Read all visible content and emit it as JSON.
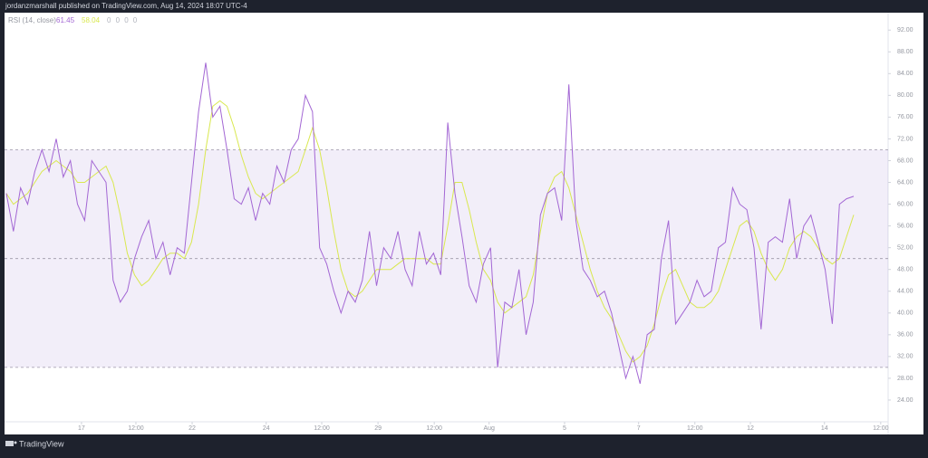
{
  "header": {
    "text": "jordanzmarshall published on TradingView.com, Aug 14, 2024 18:07 UTC-4"
  },
  "footer": {
    "brand": "TradingView"
  },
  "chart_data": {
    "type": "line",
    "legend": {
      "label": "RSI (14, close)",
      "values": [
        61.45,
        58.04,
        0,
        0,
        0,
        0
      ]
    },
    "x": [
      0,
      1,
      2,
      3,
      4,
      5,
      6,
      7,
      8,
      9,
      10,
      11,
      12,
      13,
      14,
      15,
      16,
      17,
      18,
      19,
      20,
      21,
      22,
      23,
      24,
      25,
      26,
      27,
      28,
      29,
      30,
      31,
      32,
      33,
      34,
      35,
      36,
      37,
      38,
      39,
      40,
      41,
      42,
      43,
      44,
      45,
      46,
      47,
      48,
      49,
      50,
      51,
      52,
      53,
      54,
      55,
      56,
      57,
      58,
      59,
      60,
      61,
      62,
      63,
      64,
      65,
      66,
      67,
      68,
      69,
      70,
      71,
      72,
      73,
      74,
      75,
      76,
      77,
      78,
      79,
      80,
      81,
      82,
      83,
      84,
      85,
      86,
      87,
      88,
      89,
      90,
      91,
      92,
      93,
      94,
      95,
      96,
      97,
      98,
      99,
      100,
      101,
      102,
      103,
      104,
      105,
      106,
      107,
      108,
      109,
      110,
      111,
      112,
      113,
      114,
      115,
      116,
      117,
      118,
      119
    ],
    "series": [
      {
        "color": "#a367d4",
        "values": [
          62,
          55,
          63,
          60,
          66,
          70,
          66,
          72,
          65,
          68,
          60,
          57,
          68,
          66,
          64,
          46,
          42,
          44,
          50,
          54,
          57,
          50,
          53,
          47,
          52,
          51,
          64,
          77,
          86,
          76,
          78,
          70,
          61,
          60,
          63,
          57,
          62,
          60,
          67,
          64,
          70,
          72,
          80,
          77,
          52,
          49,
          44,
          40,
          44,
          42,
          46,
          55,
          45,
          52,
          50,
          55,
          48,
          45,
          55,
          49,
          51,
          47,
          75,
          62,
          54,
          45,
          42,
          49,
          52,
          30,
          42,
          41,
          48,
          36,
          42,
          58,
          62,
          63,
          57,
          82,
          57,
          48,
          46,
          43,
          44,
          40,
          34,
          28,
          32,
          27,
          36,
          37,
          50,
          57,
          38,
          40,
          42,
          46,
          43,
          44,
          52,
          53,
          63,
          60,
          59,
          52,
          37,
          53,
          54,
          53,
          61,
          50,
          56,
          58,
          53,
          48,
          38,
          60,
          61,
          61.45
        ]
      },
      {
        "color": "#d9e84f",
        "values": [
          62,
          60,
          61,
          62,
          64,
          66,
          67,
          68,
          67,
          66,
          64,
          64,
          65,
          66,
          67,
          64,
          58,
          51,
          47,
          45,
          46,
          48,
          50,
          51,
          51,
          50,
          53,
          60,
          70,
          78,
          79,
          78,
          74,
          69,
          65,
          62,
          61,
          62,
          63,
          64,
          65,
          66,
          70,
          74,
          70,
          63,
          55,
          48,
          44,
          43,
          44,
          46,
          48,
          48,
          48,
          49,
          50,
          50,
          50,
          50,
          49,
          49,
          56,
          64,
          64,
          59,
          53,
          48,
          46,
          42,
          40,
          41,
          42,
          43,
          47,
          55,
          62,
          65,
          66,
          63,
          58,
          53,
          48,
          44,
          41,
          39,
          36,
          33,
          31,
          32,
          34,
          38,
          43,
          47,
          48,
          45,
          42,
          41,
          41,
          42,
          44,
          48,
          52,
          56,
          57,
          55,
          51,
          48,
          46,
          48,
          52,
          54,
          55,
          54,
          52,
          50,
          49,
          50,
          54,
          58.04
        ]
      }
    ],
    "levels": [
      70,
      50,
      30
    ],
    "xlim": [
      -0.25,
      123.84
    ],
    "xticks": [
      {
        "value": 10.56,
        "label": "17"
      },
      {
        "value": 18.2,
        "label": "12:00"
      },
      {
        "value": 26.1,
        "label": "22"
      },
      {
        "value": 36.5,
        "label": "24"
      },
      {
        "value": 44.3,
        "label": "12:00"
      },
      {
        "value": 52.2,
        "label": "29"
      },
      {
        "value": 60.1,
        "label": "12:00"
      },
      {
        "value": 67.8,
        "label": "Aug"
      },
      {
        "value": 78.4,
        "label": "5"
      },
      {
        "value": 88.8,
        "label": "7"
      },
      {
        "value": 96.7,
        "label": "12:00"
      },
      {
        "value": 104.5,
        "label": "12"
      },
      {
        "value": 114.9,
        "label": "14"
      },
      {
        "value": 122.8,
        "label": "12:00"
      }
    ],
    "ylim": [
      20,
      95.2
    ],
    "yticks": [
      {
        "value": 24,
        "label": "24.00"
      },
      {
        "value": 28,
        "label": "28.00"
      },
      {
        "value": 32,
        "label": "32.00"
      },
      {
        "value": 36,
        "label": "36.00"
      },
      {
        "value": 40,
        "label": "40.00"
      },
      {
        "value": 44,
        "label": "44.00"
      },
      {
        "value": 48,
        "label": "48.00"
      },
      {
        "value": 52,
        "label": "52.00"
      },
      {
        "value": 56,
        "label": "56.00"
      },
      {
        "value": 60,
        "label": "60.00"
      },
      {
        "value": 64,
        "label": "64.00"
      },
      {
        "value": 68,
        "label": "68.00"
      },
      {
        "value": 72,
        "label": "72.00"
      },
      {
        "value": 76,
        "label": "76.00"
      },
      {
        "value": 80,
        "label": "80.00"
      },
      {
        "value": 84,
        "label": "84.00"
      },
      {
        "value": 88,
        "label": "88.00"
      },
      {
        "value": 92,
        "label": "92.00"
      }
    ]
  }
}
